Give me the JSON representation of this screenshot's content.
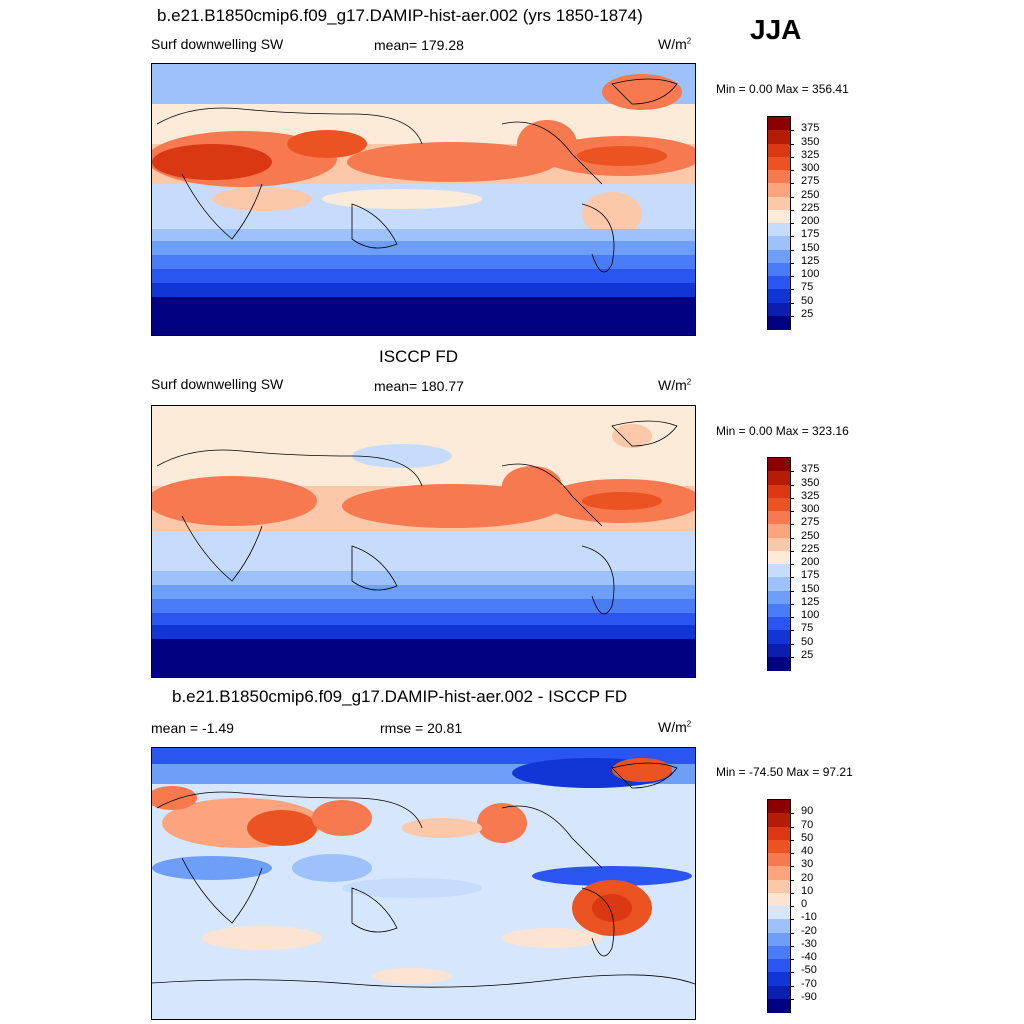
{
  "season": "JJA",
  "panels": [
    {
      "title": "b.e21.B1850cmip6.f09_g17.DAMIP-hist-aer.002 (yrs 1850-1874)",
      "left_label": "Surf downwelling SW",
      "center_label": "mean= 179.28",
      "units_base": "W/m",
      "units_sup": "2",
      "minmax": "Min =   0.00 Max = 356.41",
      "colorbar_labels": [
        "375",
        "350",
        "325",
        "300",
        "275",
        "250",
        "225",
        "200",
        "175",
        "150",
        "125",
        "100",
        "75",
        "50",
        "25"
      ]
    },
    {
      "title": "ISCCP FD",
      "left_label": "Surf downwelling SW",
      "center_label": "mean= 180.77",
      "units_base": "W/m",
      "units_sup": "2",
      "minmax": "Min =   0.00 Max = 323.16",
      "colorbar_labels": [
        "375",
        "350",
        "325",
        "300",
        "275",
        "250",
        "225",
        "200",
        "175",
        "150",
        "125",
        "100",
        "75",
        "50",
        "25"
      ]
    },
    {
      "title": "b.e21.B1850cmip6.f09_g17.DAMIP-hist-aer.002 - ISCCP FD",
      "left_label": "mean =  -1.49",
      "center_label": "rmse =  20.81",
      "units_base": "W/m",
      "units_sup": "2",
      "minmax": "Min = -74.50 Max =  97.21",
      "colorbar_labels": [
        "90",
        "70",
        "50",
        "40",
        "30",
        "20",
        "10",
        "0",
        "-10",
        "-20",
        "-30",
        "-40",
        "-50",
        "-70",
        "-90"
      ]
    }
  ],
  "chart_data": [
    {
      "type": "heatmap",
      "title": "b.e21.B1850cmip6.f09_g17.DAMIP-hist-aer.002 (yrs 1850-1874)",
      "variable": "Surf downwelling SW",
      "mean": 179.28,
      "min": 0.0,
      "max": 356.41,
      "levels": [
        25,
        50,
        75,
        100,
        125,
        150,
        175,
        200,
        225,
        250,
        275,
        300,
        325,
        350,
        375
      ],
      "colors": [
        "#000080",
        "#0a1fb0",
        "#1236d6",
        "#2b55f0",
        "#4a7cf7",
        "#6d9ff9",
        "#9dc1fb",
        "#c7dcfc",
        "#fdebd9",
        "#fcc8aa",
        "#fba47d",
        "#f7794f",
        "#ec5323",
        "#d93812",
        "#b51c05",
        "#8b0000"
      ]
    },
    {
      "type": "heatmap",
      "title": "ISCCP FD",
      "variable": "Surf downwelling SW",
      "mean": 180.77,
      "min": 0.0,
      "max": 323.16,
      "levels": [
        25,
        50,
        75,
        100,
        125,
        150,
        175,
        200,
        225,
        250,
        275,
        300,
        325,
        350,
        375
      ],
      "colors": [
        "#000080",
        "#0a1fb0",
        "#1236d6",
        "#2b55f0",
        "#4a7cf7",
        "#6d9ff9",
        "#9dc1fb",
        "#c7dcfc",
        "#fdebd9",
        "#fcc8aa",
        "#fba47d",
        "#f7794f",
        "#ec5323",
        "#d93812",
        "#b51c05",
        "#8b0000"
      ]
    },
    {
      "type": "heatmap",
      "title": "b.e21.B1850cmip6.f09_g17.DAMIP-hist-aer.002 - ISCCP FD",
      "mean": -1.49,
      "rmse": 20.81,
      "min": -74.5,
      "max": 97.21,
      "levels": [
        -90,
        -70,
        -50,
        -40,
        -30,
        -20,
        -10,
        0,
        10,
        20,
        30,
        40,
        50,
        70,
        90
      ],
      "colors": [
        "#000080",
        "#0a1fb0",
        "#1236d6",
        "#2b55f0",
        "#4a7cf7",
        "#6d9ff9",
        "#9dc1fb",
        "#d6e6fd",
        "#fde4d2",
        "#fcc8aa",
        "#fba47d",
        "#f7794f",
        "#ec5323",
        "#d93812",
        "#b51c05",
        "#8b0000"
      ]
    }
  ]
}
